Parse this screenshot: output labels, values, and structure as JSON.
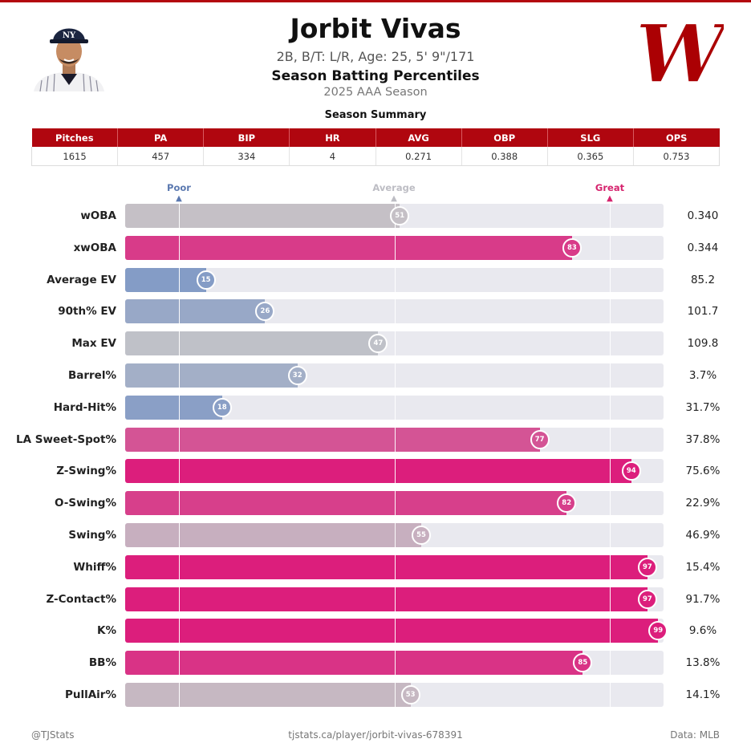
{
  "header": {
    "player_name": "Jorbit Vivas",
    "bio": "2B, B/T: L/R, Age: 25, 5' 9\"/171",
    "chart_title": "Season Batting Percentiles",
    "season": "2025 AAA Season",
    "headshot_icon": "player-headshot",
    "team_logo_icon": "washington-nationals-logo"
  },
  "summary": {
    "title": "Season Summary",
    "headers": [
      "Pitches",
      "PA",
      "BIP",
      "HR",
      "AVG",
      "OBP",
      "SLG",
      "OPS"
    ],
    "values": [
      "1615",
      "457",
      "334",
      "4",
      "0.271",
      "0.388",
      "0.365",
      "0.753"
    ]
  },
  "scale": {
    "poor": "Poor",
    "average": "Average",
    "great": "Great"
  },
  "chart_data": {
    "type": "bar",
    "orientation": "horizontal",
    "title": "Season Batting Percentiles",
    "xlim": [
      0,
      100
    ],
    "reference_lines": [
      10,
      50,
      90
    ],
    "categories": [
      "wOBA",
      "xwOBA",
      "Average EV",
      "90th% EV",
      "Max EV",
      "Barrel%",
      "Hard-Hit%",
      "LA Sweet-Spot%",
      "Z-Swing%",
      "O-Swing%",
      "Swing%",
      "Whiff%",
      "Z-Contact%",
      "K%",
      "BB%",
      "PullAir%"
    ],
    "percentiles": [
      51,
      83,
      15,
      26,
      47,
      32,
      18,
      77,
      94,
      82,
      55,
      97,
      97,
      99,
      85,
      53
    ],
    "stat_values": [
      "0.340",
      "0.344",
      "85.2",
      "101.7",
      "109.8",
      "3.7%",
      "31.7%",
      "37.8%",
      "75.6%",
      "22.9%",
      "46.9%",
      "15.4%",
      "91.7%",
      "9.6%",
      "13.8%",
      "14.1%"
    ],
    "colors": {
      "poor": "#7b96c6",
      "average": "#c4c4c8",
      "great": "#dc1e7c",
      "track": "#e9e9ef"
    }
  },
  "footer": {
    "left": "@TJStats",
    "center": "tjstats.ca/player/jorbit-vivas-678391",
    "right": "Data: MLB"
  }
}
